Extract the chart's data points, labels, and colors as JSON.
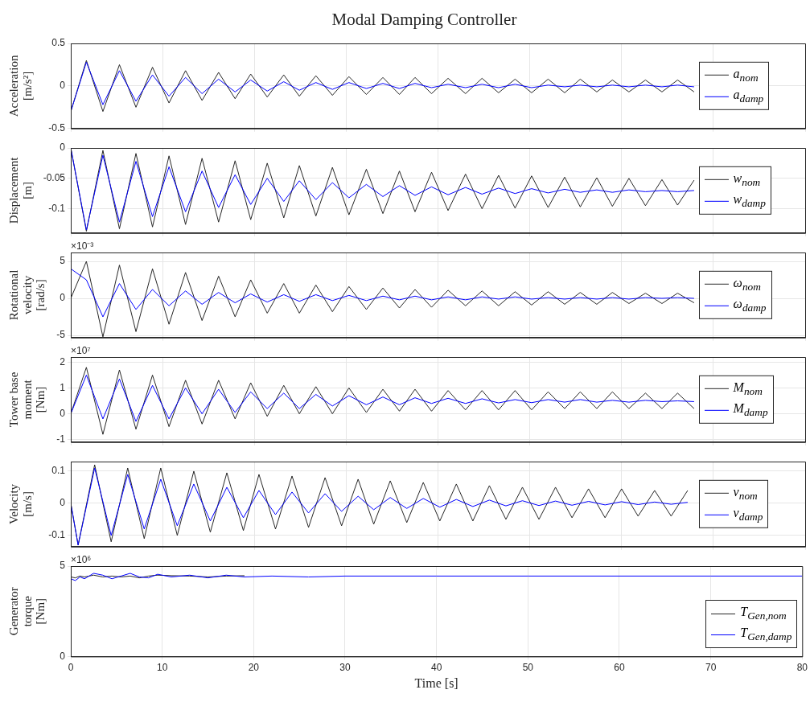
{
  "chart_data": [
    {
      "type": "line",
      "title": "Modal Damping Controller",
      "ylabel": "Acceleration [m/s²]",
      "xlim": [
        0,
        80
      ],
      "xticks": [
        0,
        10,
        20,
        30,
        40,
        50,
        60,
        70,
        80
      ],
      "ylim": [
        -0.5,
        0.5
      ],
      "yticks": [
        -0.5,
        0,
        0.5
      ],
      "grid": true,
      "legend": "right",
      "tick_labels": "y",
      "marker": "none",
      "line_style": "solid",
      "x": [
        0,
        1.7,
        3.5,
        5.3,
        7.1,
        8.9,
        10.7,
        12.5,
        14.3,
        16.1,
        17.9,
        19.6,
        21.4,
        23.2,
        24.9,
        26.7,
        28.5,
        30.3,
        32.2,
        34.0,
        35.8,
        37.5,
        39.3,
        41.1,
        43.0,
        44.8,
        46.6,
        48.4,
        50.2,
        52.0,
        53.8,
        55.5,
        57.3,
        59.0,
        60.8,
        62.6,
        64.4,
        66.1,
        67.9
      ],
      "series": [
        {
          "name": "a$_{nom}$",
          "color": "#262626",
          "values": [
            -0.3,
            0.3,
            -0.3,
            0.25,
            -0.25,
            0.22,
            -0.2,
            0.18,
            -0.17,
            0.16,
            -0.15,
            0.14,
            -0.13,
            0.13,
            -0.12,
            0.12,
            -0.11,
            0.11,
            -0.1,
            0.1,
            -0.1,
            0.1,
            -0.09,
            0.09,
            -0.09,
            0.09,
            -0.08,
            0.08,
            -0.08,
            0.08,
            -0.08,
            0.08,
            -0.07,
            0.07,
            -0.07,
            0.07,
            -0.07,
            0.07,
            -0.07
          ]
        },
        {
          "name": "a$_{damp}$",
          "color": "#0000ff",
          "values": [
            -0.3,
            0.28,
            -0.22,
            0.18,
            -0.18,
            0.13,
            -0.12,
            0.1,
            -0.09,
            0.08,
            -0.07,
            0.07,
            -0.06,
            0.05,
            -0.05,
            0.04,
            -0.04,
            0.04,
            -0.03,
            0.03,
            -0.03,
            0.03,
            -0.02,
            0.02,
            -0.02,
            0.02,
            -0.02,
            0.02,
            -0.02,
            0.01,
            -0.01,
            0.01,
            -0.01,
            0.01,
            -0.01,
            0.01,
            -0.01,
            0.01,
            -0.01
          ]
        }
      ]
    },
    {
      "type": "line",
      "ylabel": "Displacement [m]",
      "xlim": [
        0,
        80
      ],
      "xticks": [
        0,
        10,
        20,
        30,
        40,
        50,
        60,
        70,
        80
      ],
      "ylim": [
        -0.14,
        0
      ],
      "yticks": [
        -0.1,
        -0.05,
        0
      ],
      "grid": true,
      "legend": "right",
      "tick_labels": "y",
      "marker": "none",
      "line_style": "solid",
      "x": [
        0,
        1.7,
        3.5,
        5.3,
        7.1,
        8.9,
        10.7,
        12.5,
        14.3,
        16.1,
        17.9,
        19.6,
        21.4,
        23.2,
        24.9,
        26.7,
        28.5,
        30.3,
        32.2,
        34.0,
        35.8,
        37.5,
        39.3,
        41.1,
        43.0,
        44.8,
        46.6,
        48.4,
        50.2,
        52.0,
        53.8,
        55.5,
        57.3,
        59.0,
        60.8,
        62.6,
        64.4,
        66.1,
        67.9
      ],
      "series": [
        {
          "name": "w$_{nom}$",
          "color": "#262626",
          "values": [
            0,
            -0.137,
            -0.004,
            -0.133,
            -0.009,
            -0.13,
            -0.013,
            -0.126,
            -0.017,
            -0.122,
            -0.021,
            -0.118,
            -0.025,
            -0.115,
            -0.029,
            -0.112,
            -0.032,
            -0.11,
            -0.035,
            -0.108,
            -0.038,
            -0.105,
            -0.04,
            -0.103,
            -0.043,
            -0.1,
            -0.045,
            -0.099,
            -0.046,
            -0.098,
            -0.048,
            -0.097,
            -0.049,
            -0.096,
            -0.05,
            -0.095,
            -0.052,
            -0.094,
            -0.053
          ]
        },
        {
          "name": "w$_{damp}$",
          "color": "#0000ff",
          "values": [
            0,
            -0.135,
            -0.012,
            -0.122,
            -0.022,
            -0.113,
            -0.031,
            -0.105,
            -0.038,
            -0.098,
            -0.044,
            -0.093,
            -0.05,
            -0.088,
            -0.054,
            -0.085,
            -0.057,
            -0.082,
            -0.06,
            -0.08,
            -0.062,
            -0.078,
            -0.064,
            -0.077,
            -0.065,
            -0.076,
            -0.066,
            -0.075,
            -0.067,
            -0.074,
            -0.068,
            -0.073,
            -0.069,
            -0.073,
            -0.069,
            -0.072,
            -0.07,
            -0.072,
            -0.07
          ]
        }
      ]
    },
    {
      "type": "line",
      "ylabel": "Rotational velocity [rad/s]",
      "annotations": [
        "×10⁻³"
      ],
      "xlim": [
        0,
        80
      ],
      "xticks": [
        0,
        10,
        20,
        30,
        40,
        50,
        60,
        70,
        80
      ],
      "ylim": [
        -5.3,
        6.2
      ],
      "yticks": [
        -5,
        0,
        5
      ],
      "grid": true,
      "legend": "right",
      "tick_labels": "y",
      "marker": "none",
      "line_style": "solid",
      "x": [
        0,
        1.7,
        3.5,
        5.3,
        7.1,
        8.9,
        10.7,
        12.5,
        14.3,
        16.1,
        17.9,
        19.6,
        21.4,
        23.2,
        24.9,
        26.7,
        28.5,
        30.3,
        32.2,
        34.0,
        35.8,
        37.5,
        39.3,
        41.1,
        43.0,
        44.8,
        46.6,
        48.4,
        50.2,
        52.0,
        53.8,
        55.5,
        57.3,
        59.0,
        60.8,
        62.6,
        64.4,
        66.1,
        67.9
      ],
      "series": [
        {
          "name": "ω$_{nom}$",
          "color": "#262626",
          "values": [
            0,
            5,
            -5.2,
            4.5,
            -4.5,
            4,
            -3.5,
            3.5,
            -3,
            3,
            -2.5,
            2.5,
            -2,
            2,
            -2,
            1.8,
            -1.8,
            1.6,
            -1.5,
            1.4,
            -1.3,
            1.2,
            -1.2,
            1.1,
            -1,
            1,
            -1,
            0.9,
            -0.9,
            0.9,
            -0.8,
            0.8,
            -0.8,
            0.8,
            -0.7,
            0.7,
            -0.7,
            0.7,
            -0.6
          ]
        },
        {
          "name": "ω$_{damp}$",
          "color": "#0000ff",
          "values": [
            4,
            2.5,
            -2.5,
            2,
            -1.5,
            1.2,
            -1,
            1,
            -0.8,
            0.8,
            -0.6,
            0.6,
            -0.5,
            0.5,
            -0.4,
            0.5,
            -0.3,
            0.4,
            -0.3,
            0.3,
            -0.2,
            0.3,
            -0.2,
            0.2,
            -0.2,
            0.2,
            -0.1,
            0.2,
            -0.1,
            0.1,
            -0.1,
            0.1,
            -0.1,
            0.1,
            -0.1,
            0.1,
            0,
            0.1,
            0
          ]
        }
      ]
    },
    {
      "type": "line",
      "ylabel": "Tower base moment [Nm]",
      "annotations": [
        "×10⁷"
      ],
      "xlim": [
        0,
        80
      ],
      "xticks": [
        0,
        10,
        20,
        30,
        40,
        50,
        60,
        70,
        80
      ],
      "ylim": [
        -1.1,
        2.2
      ],
      "yticks": [
        -1,
        0,
        1,
        2
      ],
      "grid": true,
      "legend": "right",
      "tick_labels": "y",
      "marker": "none",
      "line_style": "solid",
      "x": [
        0,
        1.7,
        3.5,
        5.3,
        7.1,
        8.9,
        10.7,
        12.5,
        14.3,
        16.1,
        17.9,
        19.6,
        21.4,
        23.2,
        24.9,
        26.7,
        28.5,
        30.3,
        32.2,
        34.0,
        35.8,
        37.5,
        39.3,
        41.1,
        43.0,
        44.8,
        46.6,
        48.4,
        50.2,
        52.0,
        53.8,
        55.5,
        57.3,
        59.0,
        60.8,
        62.6,
        64.4,
        66.1,
        67.9
      ],
      "series": [
        {
          "name": "M$_{nom}$",
          "color": "#262626",
          "values": [
            0,
            1.8,
            -0.8,
            1.7,
            -0.6,
            1.5,
            -0.5,
            1.3,
            -0.4,
            1.3,
            -0.2,
            1.2,
            -0.1,
            1.1,
            0,
            1.05,
            0,
            1,
            0.05,
            0.95,
            0.1,
            0.95,
            0.1,
            0.9,
            0.15,
            0.9,
            0.15,
            0.9,
            0.15,
            0.85,
            0.2,
            0.85,
            0.2,
            0.85,
            0.2,
            0.8,
            0.2,
            0.8,
            0.2
          ]
        },
        {
          "name": "M$_{damp}$",
          "color": "#0000ff",
          "values": [
            0,
            1.5,
            -0.2,
            1.35,
            -0.3,
            1.1,
            -0.2,
            1,
            0,
            0.95,
            0.05,
            0.85,
            0.2,
            0.8,
            0.2,
            0.75,
            0.3,
            0.7,
            0.35,
            0.65,
            0.35,
            0.62,
            0.4,
            0.6,
            0.4,
            0.58,
            0.42,
            0.55,
            0.43,
            0.55,
            0.45,
            0.55,
            0.45,
            0.52,
            0.45,
            0.52,
            0.47,
            0.5,
            0.47
          ]
        }
      ]
    },
    {
      "type": "line",
      "ylabel": "Velocity [m/s]",
      "xlim": [
        0,
        80
      ],
      "xticks": [
        0,
        10,
        20,
        30,
        40,
        50,
        60,
        70,
        80
      ],
      "ylim": [
        -0.135,
        0.13
      ],
      "yticks": [
        -0.1,
        0,
        0.1
      ],
      "grid": true,
      "legend": "right",
      "tick_labels": "y",
      "marker": "none",
      "line_style": "solid",
      "x": [
        0,
        0.8,
        2.6,
        4.4,
        6.2,
        8.0,
        9.8,
        11.6,
        13.4,
        15.2,
        17.0,
        18.8,
        20.5,
        22.3,
        24.1,
        25.9,
        27.7,
        29.5,
        31.3,
        33.0,
        34.8,
        36.6,
        38.4,
        40.2,
        42.0,
        43.8,
        45.6,
        47.4,
        49.2,
        51.0,
        52.8,
        54.6,
        56.4,
        58.2,
        60.0,
        61.8,
        63.6,
        65.4,
        67.2
      ],
      "series": [
        {
          "name": "v$_{nom}$",
          "color": "#262626",
          "values": [
            0,
            -0.13,
            0.12,
            -0.12,
            0.11,
            -0.11,
            0.11,
            -0.1,
            0.1,
            -0.09,
            0.095,
            -0.085,
            0.09,
            -0.08,
            0.085,
            -0.075,
            0.08,
            -0.07,
            0.075,
            -0.065,
            0.07,
            -0.06,
            0.065,
            -0.055,
            0.06,
            -0.055,
            0.055,
            -0.05,
            0.05,
            -0.05,
            0.05,
            -0.045,
            0.045,
            -0.045,
            0.045,
            -0.04,
            0.04,
            -0.04,
            0.04
          ]
        },
        {
          "name": "v$_{damp}$",
          "color": "#0000ff",
          "values": [
            0,
            -0.13,
            0.11,
            -0.1,
            0.09,
            -0.08,
            0.075,
            -0.07,
            0.06,
            -0.055,
            0.05,
            -0.045,
            0.04,
            -0.035,
            0.035,
            -0.03,
            0.03,
            -0.025,
            0.022,
            -0.02,
            0.018,
            -0.016,
            0.015,
            -0.012,
            0.012,
            -0.01,
            0.01,
            -0.008,
            0.008,
            -0.007,
            0.007,
            -0.006,
            0.006,
            -0.005,
            0.005,
            -0.004,
            0.004,
            -0.003,
            0.003
          ]
        }
      ]
    },
    {
      "type": "line",
      "ylabel": "Generator torque [Nm]",
      "xlabel": "Time [s]",
      "annotations": [
        "×10⁶"
      ],
      "xlim": [
        0,
        80
      ],
      "xticks": [
        0,
        10,
        20,
        30,
        40,
        50,
        60,
        70,
        80
      ],
      "ylim": [
        0,
        5
      ],
      "yticks": [
        0,
        5
      ],
      "grid": true,
      "legend": "bottom right",
      "marker": "none",
      "line_style": "solid",
      "x": [
        0,
        0.5,
        1,
        1.5,
        2.5,
        3.5,
        4.5,
        5.5,
        6.5,
        7.5,
        8.5,
        9.5,
        11,
        13,
        15,
        17,
        19,
        22,
        26,
        30,
        40,
        50,
        60,
        70,
        80
      ],
      "series": [
        {
          "name": "T$_{Gen,nom}$",
          "color": "#262626",
          "values": [
            4.4,
            4.35,
            4.45,
            4.4,
            4.5,
            4.4,
            4.45,
            4.4,
            4.45,
            4.35,
            4.45,
            4.5,
            4.47,
            4.45,
            4.4,
            4.45,
            4.47,
            null,
            null,
            null,
            null,
            null,
            null,
            null,
            null
          ]
        },
        {
          "name": "T$_{Gen,damp}$",
          "color": "#0000ff",
          "values": [
            4.3,
            4.2,
            4.4,
            4.3,
            4.6,
            4.5,
            4.3,
            4.45,
            4.6,
            4.4,
            4.35,
            4.55,
            4.4,
            4.5,
            4.35,
            4.5,
            4.4,
            4.45,
            4.4,
            4.45,
            4.45,
            4.45,
            4.45,
            4.45,
            4.45
          ]
        }
      ]
    }
  ]
}
